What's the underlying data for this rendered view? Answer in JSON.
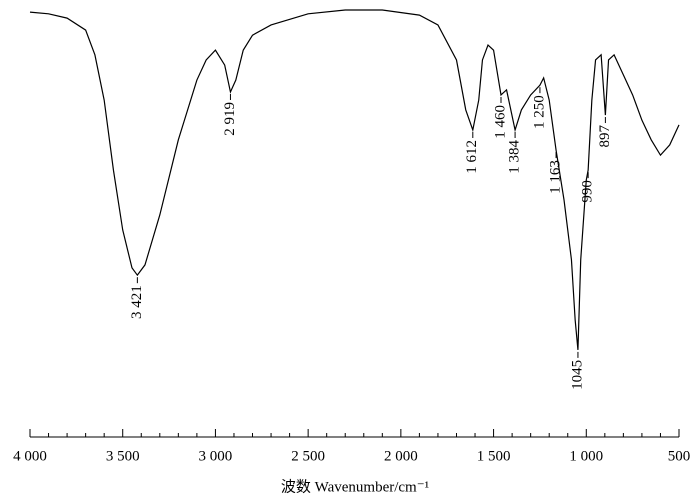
{
  "chart_data": {
    "type": "line",
    "x_label": "波数 Wavenumber/cm⁻¹",
    "x": [
      4000,
      3900,
      3800,
      3700,
      3650,
      3600,
      3550,
      3500,
      3450,
      3421,
      3380,
      3300,
      3200,
      3100,
      3050,
      3000,
      2950,
      2919,
      2890,
      2850,
      2800,
      2700,
      2500,
      2300,
      2100,
      1900,
      1800,
      1700,
      1650,
      1612,
      1580,
      1560,
      1530,
      1500,
      1460,
      1430,
      1384,
      1350,
      1300,
      1250,
      1230,
      1200,
      1163,
      1120,
      1080,
      1060,
      1045,
      1030,
      1000,
      990,
      970,
      950,
      920,
      897,
      880,
      850,
      800,
      750,
      700,
      650,
      600,
      550,
      500
    ],
    "values": [
      99.5,
      99.1,
      98.1,
      95.3,
      89.5,
      78.9,
      62.5,
      48.5,
      39.6,
      37.9,
      40.3,
      52.0,
      69.6,
      83.6,
      88.3,
      90.6,
      87.1,
      80.8,
      83.6,
      90.6,
      94.1,
      96.5,
      99.1,
      100,
      100,
      98.8,
      96.5,
      88.3,
      76.6,
      71.9,
      78.9,
      88.3,
      91.8,
      90.6,
      80.1,
      81.3,
      71.9,
      76.6,
      80.1,
      82.4,
      84.1,
      78.9,
      67.2,
      55.5,
      41.5,
      27.4,
      20.4,
      41.5,
      60.2,
      62.5,
      78.9,
      88.3,
      89.5,
      75.4,
      88.3,
      89.5,
      84.8,
      80.1,
      74.2,
      69.6,
      66.0,
      68.4,
      73.1
    ],
    "color": "#000000",
    "xlim": [
      4000,
      500
    ],
    "ylim": [
      0,
      100
    ],
    "xticks": [
      {
        "value": 4000,
        "label": "4 000"
      },
      {
        "value": 3500,
        "label": "3 500"
      },
      {
        "value": 3000,
        "label": "3 000"
      },
      {
        "value": 2500,
        "label": "2 500"
      },
      {
        "value": 2000,
        "label": "2 000"
      },
      {
        "value": 1500,
        "label": "1 500"
      },
      {
        "value": 1000,
        "label": "1 000"
      },
      500
    ],
    "annotations": [
      {
        "text": "3 421",
        "x": 3421
      },
      {
        "text": "2 919",
        "x": 2919
      },
      {
        "text": "1 612",
        "x": 1612
      },
      {
        "text": "1 460",
        "x": 1460
      },
      {
        "text": "1 384",
        "x": 1384
      },
      {
        "text": "1 250",
        "x": 1250
      },
      {
        "text": "1 163",
        "x": 1163
      },
      {
        "text": "1045",
        "x": 1045
      },
      {
        "text": "990",
        "x": 990
      },
      {
        "text": "897",
        "x": 897
      }
    ]
  }
}
